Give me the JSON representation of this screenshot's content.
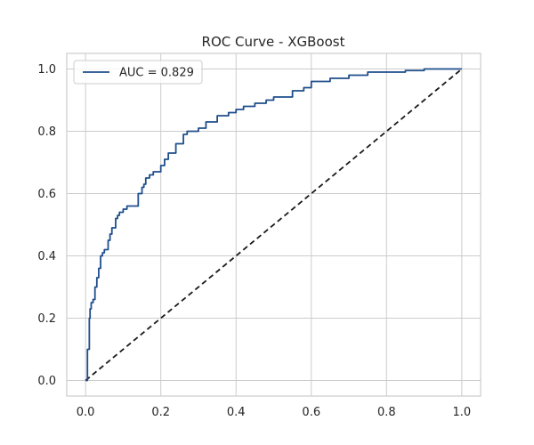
{
  "chart_data": {
    "type": "line",
    "title": "ROC Curve - XGBoost",
    "xlabel": "",
    "ylabel": "",
    "xlim": [
      -0.05,
      1.05
    ],
    "ylim": [
      -0.05,
      1.05
    ],
    "x_ticks": [
      0.0,
      0.2,
      0.4,
      0.6,
      0.8,
      1.0
    ],
    "x_tick_labels": [
      "0.0",
      "0.2",
      "0.4",
      "0.6",
      "0.8",
      "1.0"
    ],
    "y_ticks": [
      0.0,
      0.2,
      0.4,
      0.6,
      0.8,
      1.0
    ],
    "y_tick_labels": [
      "0.0",
      "0.2",
      "0.4",
      "0.6",
      "0.8",
      "1.0"
    ],
    "grid": true,
    "legend_position": "top-left",
    "series": [
      {
        "name": "AUC = 0.829",
        "color": "#1f4e8c",
        "style": "solid",
        "x": [
          0.0,
          0.005,
          0.01,
          0.012,
          0.015,
          0.02,
          0.025,
          0.03,
          0.035,
          0.04,
          0.045,
          0.05,
          0.06,
          0.065,
          0.07,
          0.08,
          0.085,
          0.09,
          0.1,
          0.11,
          0.12,
          0.13,
          0.14,
          0.15,
          0.155,
          0.16,
          0.17,
          0.18,
          0.2,
          0.21,
          0.22,
          0.24,
          0.26,
          0.27,
          0.3,
          0.32,
          0.35,
          0.38,
          0.4,
          0.42,
          0.45,
          0.48,
          0.5,
          0.55,
          0.58,
          0.6,
          0.62,
          0.65,
          0.7,
          0.75,
          0.8,
          0.85,
          0.9,
          0.95,
          1.0
        ],
        "y": [
          0.0,
          0.1,
          0.2,
          0.23,
          0.25,
          0.26,
          0.3,
          0.33,
          0.36,
          0.4,
          0.41,
          0.42,
          0.45,
          0.47,
          0.49,
          0.52,
          0.53,
          0.54,
          0.55,
          0.56,
          0.56,
          0.56,
          0.6,
          0.62,
          0.63,
          0.65,
          0.66,
          0.67,
          0.69,
          0.71,
          0.73,
          0.76,
          0.79,
          0.8,
          0.81,
          0.83,
          0.85,
          0.86,
          0.87,
          0.88,
          0.89,
          0.9,
          0.91,
          0.93,
          0.94,
          0.96,
          0.96,
          0.97,
          0.98,
          0.99,
          0.99,
          0.995,
          1.0,
          1.0,
          1.0
        ]
      },
      {
        "name": "",
        "color": "#1a1a1a",
        "style": "dashed",
        "x": [
          0.0,
          1.0
        ],
        "y": [
          0.0,
          1.0
        ]
      }
    ]
  }
}
